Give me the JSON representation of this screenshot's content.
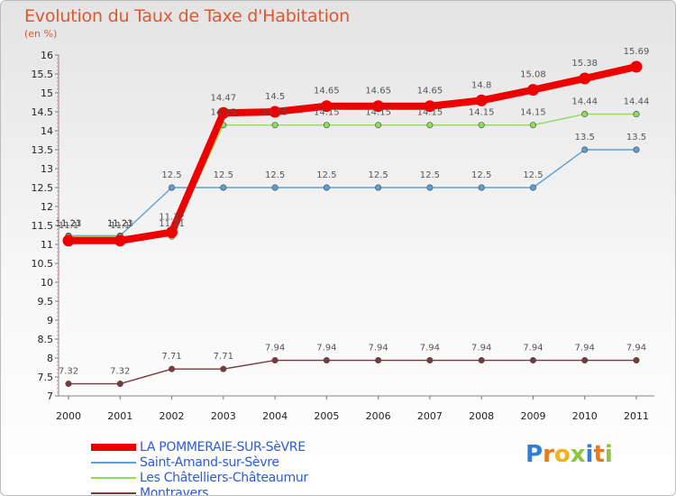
{
  "chart_data": {
    "type": "line",
    "title": "Evolution du Taux de Taxe d'Habitation",
    "subtitle": "(en %)",
    "x": [
      "2000",
      "2001",
      "2002",
      "2003",
      "2004",
      "2005",
      "2006",
      "2007",
      "2008",
      "2009",
      "2010",
      "2011"
    ],
    "ylim": [
      7,
      16
    ],
    "yticks": [
      "7",
      "7.5",
      "8",
      "8.5",
      "9",
      "9.5",
      "10",
      "10.5",
      "11",
      "11.5",
      "12",
      "12.5",
      "13",
      "13.5",
      "14",
      "14.5",
      "15",
      "15.5",
      "16"
    ],
    "grid": false,
    "legend_position": "bottom-left",
    "series": [
      {
        "name": "LA POMMERAIE-SUR-SèVRE",
        "color": "#ee0000",
        "values": [
          11.1,
          11.1,
          11.32,
          14.47,
          14.5,
          14.65,
          14.65,
          14.65,
          14.8,
          15.08,
          15.38,
          15.69
        ],
        "labels": [
          "11.1",
          "11.1",
          "11.32",
          "14.47",
          "14.5",
          "14.65",
          "14.65",
          "14.65",
          "14.8",
          "15.08",
          "15.38",
          "15.69"
        ]
      },
      {
        "name": "Saint-Amand-sur-Sèvre",
        "color": "#5e9fd6",
        "values": [
          11.23,
          11.23,
          12.5,
          12.5,
          12.5,
          12.5,
          12.5,
          12.5,
          12.5,
          12.5,
          13.5,
          13.5
        ],
        "labels": [
          "11.23",
          "11.23",
          "12.5",
          "12.5",
          "12.5",
          "12.5",
          "12.5",
          "12.5",
          "12.5",
          "12.5",
          "13.5",
          "13.5"
        ]
      },
      {
        "name": "Les Châtelliers-Châteaumur",
        "color": "#8fdc5a",
        "values": [
          11.21,
          11.21,
          11.21,
          14.15,
          14.15,
          14.15,
          14.15,
          14.15,
          14.15,
          14.15,
          14.44,
          14.44
        ],
        "labels": [
          "11.21",
          "11.21",
          "11.21",
          "14.15",
          "14.15",
          "14.15",
          "14.15",
          "14.15",
          "14.15",
          "14.15",
          "14.44",
          "14.44"
        ]
      },
      {
        "name": "Montravers",
        "color": "#7a3a3a",
        "values": [
          7.32,
          7.32,
          7.71,
          7.71,
          7.94,
          7.94,
          7.94,
          7.94,
          7.94,
          7.94,
          7.94,
          7.94
        ],
        "labels": [
          "7.32",
          "7.32",
          "7.71",
          "7.71",
          "7.94",
          "7.94",
          "7.94",
          "7.94",
          "7.94",
          "7.94",
          "7.94",
          "7.94"
        ]
      }
    ]
  },
  "logo": {
    "letters": [
      "P",
      "r",
      "o",
      "x",
      "i",
      "t",
      "i"
    ],
    "colors": [
      "#2f7fd6",
      "#e87a1e",
      "#f2b21b",
      "#8cc63e",
      "#2f7fd6",
      "#e87a1e",
      "#8cc63e"
    ]
  }
}
